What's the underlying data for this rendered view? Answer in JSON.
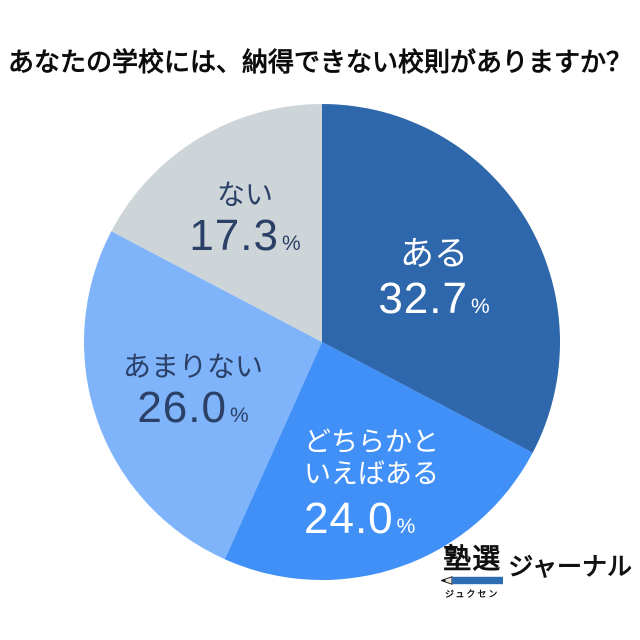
{
  "title": "あなたの学校には、納得できない校則がありますか？",
  "chart_data": {
    "type": "pie",
    "title": "あなたの学校には、納得できない校則がありますか？",
    "unit": "%",
    "start_angle_deg": 0,
    "direction": "clockwise",
    "legend": "none",
    "slices": [
      {
        "label": "ある",
        "value": 32.7,
        "display_value": "32.7",
        "color": "#2e67ab",
        "text_color": "#ffffff"
      },
      {
        "label": "どちらかといえばある",
        "label_line1": "どちらかと",
        "label_line2": "いえばある",
        "value": 24.0,
        "display_value": "24.0",
        "color": "#4190f7",
        "text_color": "#ffffff"
      },
      {
        "label": "あまりない",
        "value": 26.0,
        "display_value": "26.0",
        "color": "#7fb3fa",
        "text_color": "#2b4067"
      },
      {
        "label": "ない",
        "value": 17.3,
        "display_value": "17.3",
        "color": "#ced5d8",
        "text_color": "#2b4067"
      }
    ]
  },
  "logo": {
    "main": "塾選",
    "furigana": "ジュクセン",
    "suffix": "ジャーナル",
    "pencil_color": "#2e6db4"
  }
}
